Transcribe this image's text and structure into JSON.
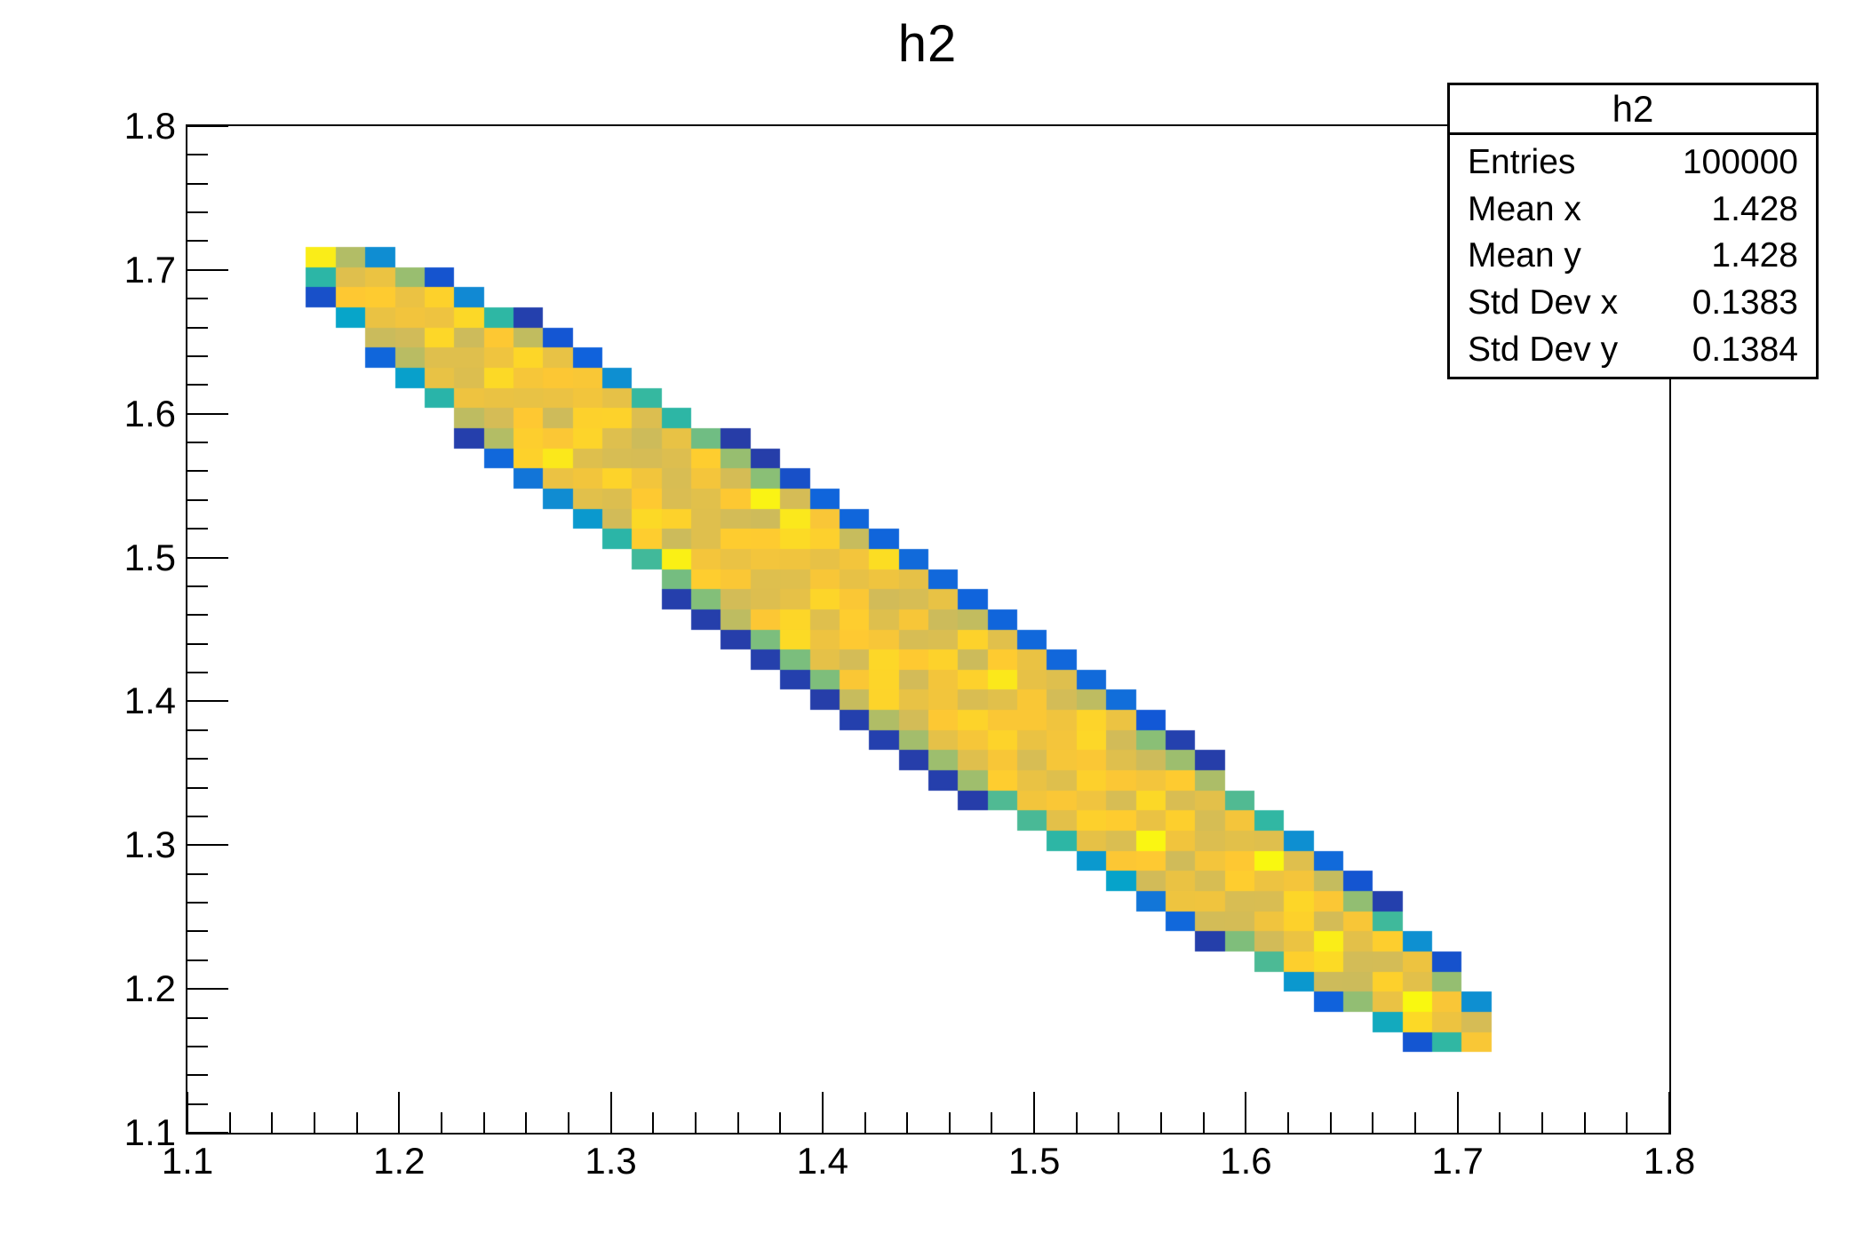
{
  "title": "h2",
  "stats_box": {
    "title": "h2",
    "rows": [
      {
        "label": "Entries",
        "value": "100000"
      },
      {
        "label": "Mean x",
        "value": "1.428"
      },
      {
        "label": "Mean y",
        "value": "1.428"
      },
      {
        "label": "Std Dev x",
        "value": "0.1383"
      },
      {
        "label": "Std Dev y",
        "value": "0.1384"
      }
    ]
  },
  "chart_data": {
    "type": "heatmap",
    "title": "h2",
    "x_axis": {
      "min": 1.1,
      "max": 1.8,
      "major_ticks": [
        1.1,
        1.2,
        1.3,
        1.4,
        1.5,
        1.6,
        1.7,
        1.8
      ],
      "tick_labels": [
        "1.1",
        "1.2",
        "1.3",
        "1.4",
        "1.5",
        "1.6",
        "1.7",
        "1.8"
      ],
      "minor_tick_step": 0.02
    },
    "y_axis": {
      "min": 1.1,
      "max": 1.8,
      "major_ticks": [
        1.1,
        1.2,
        1.3,
        1.4,
        1.5,
        1.6,
        1.7,
        1.8
      ],
      "tick_labels": [
        "1.1",
        "1.2",
        "1.3",
        "1.4",
        "1.5",
        "1.6",
        "1.7",
        "1.8"
      ],
      "minor_tick_step": 0.02
    },
    "bins": {
      "nx": 50,
      "ny": 50,
      "bin_width_x": 0.014,
      "bin_width_y": 0.014
    },
    "entries": 100000,
    "mean_x": 1.428,
    "mean_y": 1.428,
    "std_dev_x": 0.1383,
    "std_dev_y": 0.1384,
    "band": {
      "shape": "ellipse",
      "description": "anti-correlated diagonal band of filled bins running from (1.156,1.716) down to (1.716,1.156); interior bins near z-max (gold/yellow), partially-covered rim bins low (blue/teal/green)",
      "center": [
        1.437,
        1.437
      ],
      "semi_major_axis": 0.394,
      "semi_minor_axis": 0.0452,
      "major_axis_direction": "anti-diagonal (along x = -y)"
    },
    "fill_model": {
      "interior_level_mean": 0.83,
      "interior_level_spread": 0.09,
      "bright_bin_fraction": 0.05,
      "bright_level": 0.95,
      "seed": 7
    },
    "palette": {
      "name": "ROOT kBird",
      "stops": [
        "#352a87",
        "#0f5cdd",
        "#1481d6",
        "#06a4ca",
        "#2eb7a4",
        "#87bf77",
        "#d1bb59",
        "#fec832",
        "#f9fb0e"
      ]
    },
    "grid": false,
    "legend": false,
    "ticks_inside": true
  },
  "colors": {
    "axis": "#000000",
    "text": "#000000",
    "background": "#ffffff",
    "empty_bin": "#ffffff"
  }
}
